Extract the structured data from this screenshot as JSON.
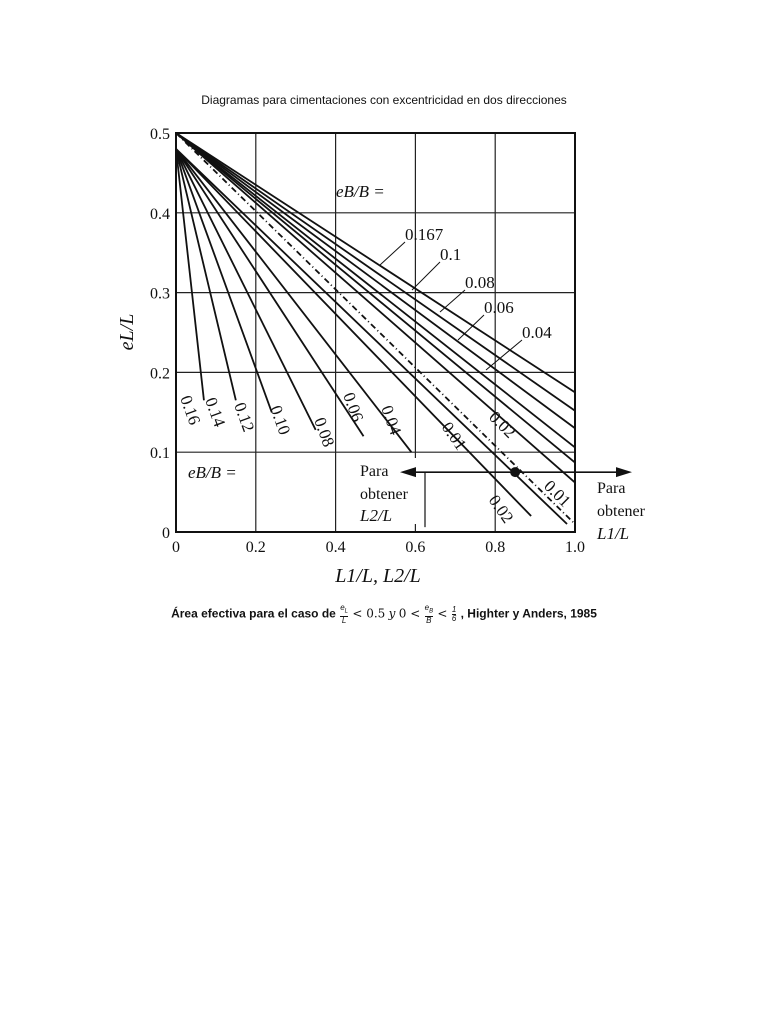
{
  "header": {
    "title": "Diagramas para cimentaciones con excentricidad en dos direcciones"
  },
  "caption": {
    "prefix": "Área efectiva para el caso de",
    "frac1_num": "e",
    "frac1_num_sub": "L",
    "frac1_den": "L",
    "lt1": "< 0.5",
    "y": "y",
    "zero": "0 <",
    "frac2_num": "e",
    "frac2_num_sub": "B",
    "frac2_den": "B",
    "lt2": "<",
    "frac3_num": "1",
    "frac3_den": "6",
    "suffix": ", Highter y Anders, 1985"
  },
  "chart_data": {
    "type": "line",
    "xlabel": "L1/L, L2/L",
    "ylabel": "eL/L",
    "xlim": [
      0,
      1.0
    ],
    "ylim": [
      0,
      0.5
    ],
    "x_ticks": [
      "0",
      "0.2",
      "0.4",
      "0.6",
      "0.8",
      "1.0"
    ],
    "y_ticks": [
      "0",
      "0.1",
      "0.2",
      "0.3",
      "0.4",
      "0.5"
    ],
    "grid": true,
    "label_top": "eB/B =",
    "label_bottom": "eB/B =",
    "left_label": {
      "line1": "Para",
      "line2": "obtener",
      "line3": "L2/L"
    },
    "right_label": {
      "line1": "Para",
      "line2": "obtener",
      "line3": "L1/L"
    },
    "example_point": {
      "x": 0.85,
      "y": 0.075
    },
    "series_L1": [
      {
        "name": "0.167",
        "x": [
          0.0,
          1.0
        ],
        "y": [
          0.5,
          0.175
        ]
      },
      {
        "name": "0.1",
        "x": [
          0.0,
          1.0
        ],
        "y": [
          0.5,
          0.152
        ]
      },
      {
        "name": "0.08",
        "x": [
          0.0,
          1.0
        ],
        "y": [
          0.5,
          0.13
        ]
      },
      {
        "name": "0.06",
        "x": [
          0.0,
          1.0
        ],
        "y": [
          0.5,
          0.106
        ]
      },
      {
        "name": "0.04",
        "x": [
          0.0,
          1.0
        ],
        "y": [
          0.5,
          0.087
        ]
      },
      {
        "name": "0.02",
        "x": [
          0.0,
          1.0
        ],
        "y": [
          0.5,
          0.062
        ]
      },
      {
        "name": "0.01",
        "x": [
          0.0,
          1.0
        ],
        "y": [
          0.5,
          0.01
        ]
      }
    ],
    "series_L2": [
      {
        "name": "0.16",
        "x": [
          0.0,
          0.0
        ],
        "y": [
          0.48,
          0.165
        ]
      },
      {
        "name": "0.14",
        "x": [
          0.0,
          0.07
        ],
        "y": [
          0.48,
          0.165
        ]
      },
      {
        "name": "0.12",
        "x": [
          0.0,
          0.15
        ],
        "y": [
          0.48,
          0.165
        ]
      },
      {
        "name": "0.10",
        "x": [
          0.0,
          0.24
        ],
        "y": [
          0.48,
          0.15
        ]
      },
      {
        "name": "0.08",
        "x": [
          0.0,
          0.35
        ],
        "y": [
          0.48,
          0.128
        ]
      },
      {
        "name": "0.06",
        "x": [
          0.0,
          0.47
        ],
        "y": [
          0.48,
          0.12
        ]
      },
      {
        "name": "0.04",
        "x": [
          0.0,
          0.59
        ],
        "y": [
          0.48,
          0.1
        ]
      },
      {
        "name": "0.02",
        "x": [
          0.0,
          0.89
        ],
        "y": [
          0.48,
          0.02
        ]
      },
      {
        "name": "0.01",
        "x": [
          0.0,
          0.98
        ],
        "y": [
          0.48,
          0.01
        ]
      }
    ]
  }
}
